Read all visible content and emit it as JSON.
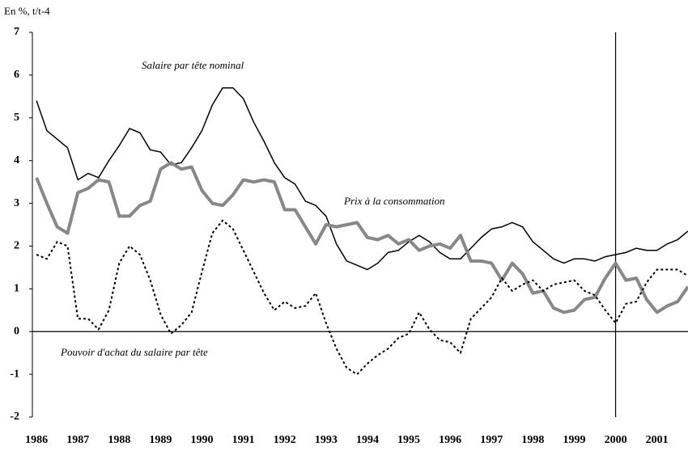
{
  "chart_data": {
    "type": "line",
    "ylabel": "En %, t/t-4",
    "x": [
      1986,
      1986.25,
      1986.5,
      1986.75,
      1987,
      1987.25,
      1987.5,
      1987.75,
      1988,
      1988.25,
      1988.5,
      1988.75,
      1989,
      1989.25,
      1989.5,
      1989.75,
      1990,
      1990.25,
      1990.5,
      1990.75,
      1991,
      1991.25,
      1991.5,
      1991.75,
      1992,
      1992.25,
      1992.5,
      1992.75,
      1993,
      1993.25,
      1993.5,
      1993.75,
      1994,
      1994.25,
      1994.5,
      1994.75,
      1995,
      1995.25,
      1995.5,
      1995.75,
      1996,
      1996.25,
      1996.5,
      1996.75,
      1997,
      1997.25,
      1997.5,
      1997.75,
      1998,
      1998.25,
      1998.5,
      1998.75,
      1999,
      1999.25,
      1999.5,
      1999.75,
      2000,
      2000.25,
      2000.5,
      2000.75,
      2001,
      2001.25,
      2001.5,
      2001.75
    ],
    "series": [
      {
        "name": "Salaire par tête nominal",
        "color": "#000000",
        "width": 1.5,
        "dash": false,
        "values": [
          5.4,
          4.7,
          4.5,
          4.3,
          3.55,
          3.7,
          3.6,
          4.0,
          4.35,
          4.75,
          4.65,
          4.25,
          4.2,
          3.9,
          3.95,
          4.3,
          4.7,
          5.3,
          5.7,
          5.7,
          5.45,
          4.9,
          4.45,
          3.95,
          3.6,
          3.45,
          3.05,
          2.95,
          2.7,
          2.05,
          1.65,
          1.55,
          1.45,
          1.6,
          1.85,
          1.9,
          2.1,
          2.25,
          2.1,
          1.85,
          1.7,
          1.7,
          1.95,
          2.2,
          2.4,
          2.45,
          2.55,
          2.45,
          2.1,
          1.9,
          1.7,
          1.6,
          1.7,
          1.7,
          1.65,
          1.75,
          1.8,
          1.85,
          1.95,
          1.9,
          1.9,
          2.05,
          2.15,
          2.35
        ]
      },
      {
        "name": "Prix à la consommation",
        "color": "#888888",
        "width": 4,
        "dash": false,
        "values": [
          3.6,
          3.0,
          2.45,
          2.3,
          3.25,
          3.35,
          3.55,
          3.5,
          2.7,
          2.7,
          2.95,
          3.05,
          3.8,
          3.95,
          3.8,
          3.85,
          3.3,
          3.0,
          2.95,
          3.2,
          3.55,
          3.5,
          3.55,
          3.5,
          2.85,
          2.85,
          2.45,
          2.05,
          2.5,
          2.45,
          2.5,
          2.55,
          2.2,
          2.15,
          2.25,
          2.05,
          2.15,
          1.9,
          2.0,
          2.05,
          1.95,
          2.25,
          1.65,
          1.65,
          1.6,
          1.2,
          1.6,
          1.35,
          0.9,
          0.95,
          0.55,
          0.45,
          0.5,
          0.75,
          0.8,
          1.25,
          1.6,
          1.2,
          1.25,
          0.75,
          0.45,
          0.6,
          0.7,
          1.05
        ]
      },
      {
        "name": "Pouvoir d'achat du salaire par tête",
        "color": "#000000",
        "width": 2,
        "dash": true,
        "values": [
          1.8,
          1.7,
          2.1,
          2.0,
          0.3,
          0.3,
          0.05,
          0.5,
          1.6,
          2.0,
          1.8,
          1.2,
          0.4,
          -0.05,
          0.15,
          0.45,
          1.4,
          2.3,
          2.6,
          2.4,
          1.9,
          1.4,
          0.9,
          0.5,
          0.7,
          0.55,
          0.6,
          0.9,
          0.2,
          -0.4,
          -0.85,
          -1.0,
          -0.75,
          -0.55,
          -0.4,
          -0.15,
          -0.05,
          0.45,
          0.05,
          -0.2,
          -0.25,
          -0.5,
          0.3,
          0.55,
          0.8,
          1.25,
          0.95,
          1.1,
          1.2,
          0.95,
          1.1,
          1.15,
          1.2,
          0.95,
          0.85,
          0.5,
          0.2,
          0.65,
          0.7,
          1.15,
          1.45,
          1.45,
          1.45,
          1.3
        ]
      }
    ],
    "xlim": [
      1985.9,
      2001.75
    ],
    "xticks": [
      1986,
      1987,
      1988,
      1989,
      1990,
      1991,
      1992,
      1993,
      1994,
      1995,
      1996,
      1997,
      1998,
      1999,
      2000,
      2001
    ],
    "ylim": [
      -2,
      7
    ],
    "yticks": [
      -2,
      -1,
      0,
      1,
      2,
      3,
      4,
      5,
      6,
      7
    ],
    "vertical_line": 2000
  }
}
